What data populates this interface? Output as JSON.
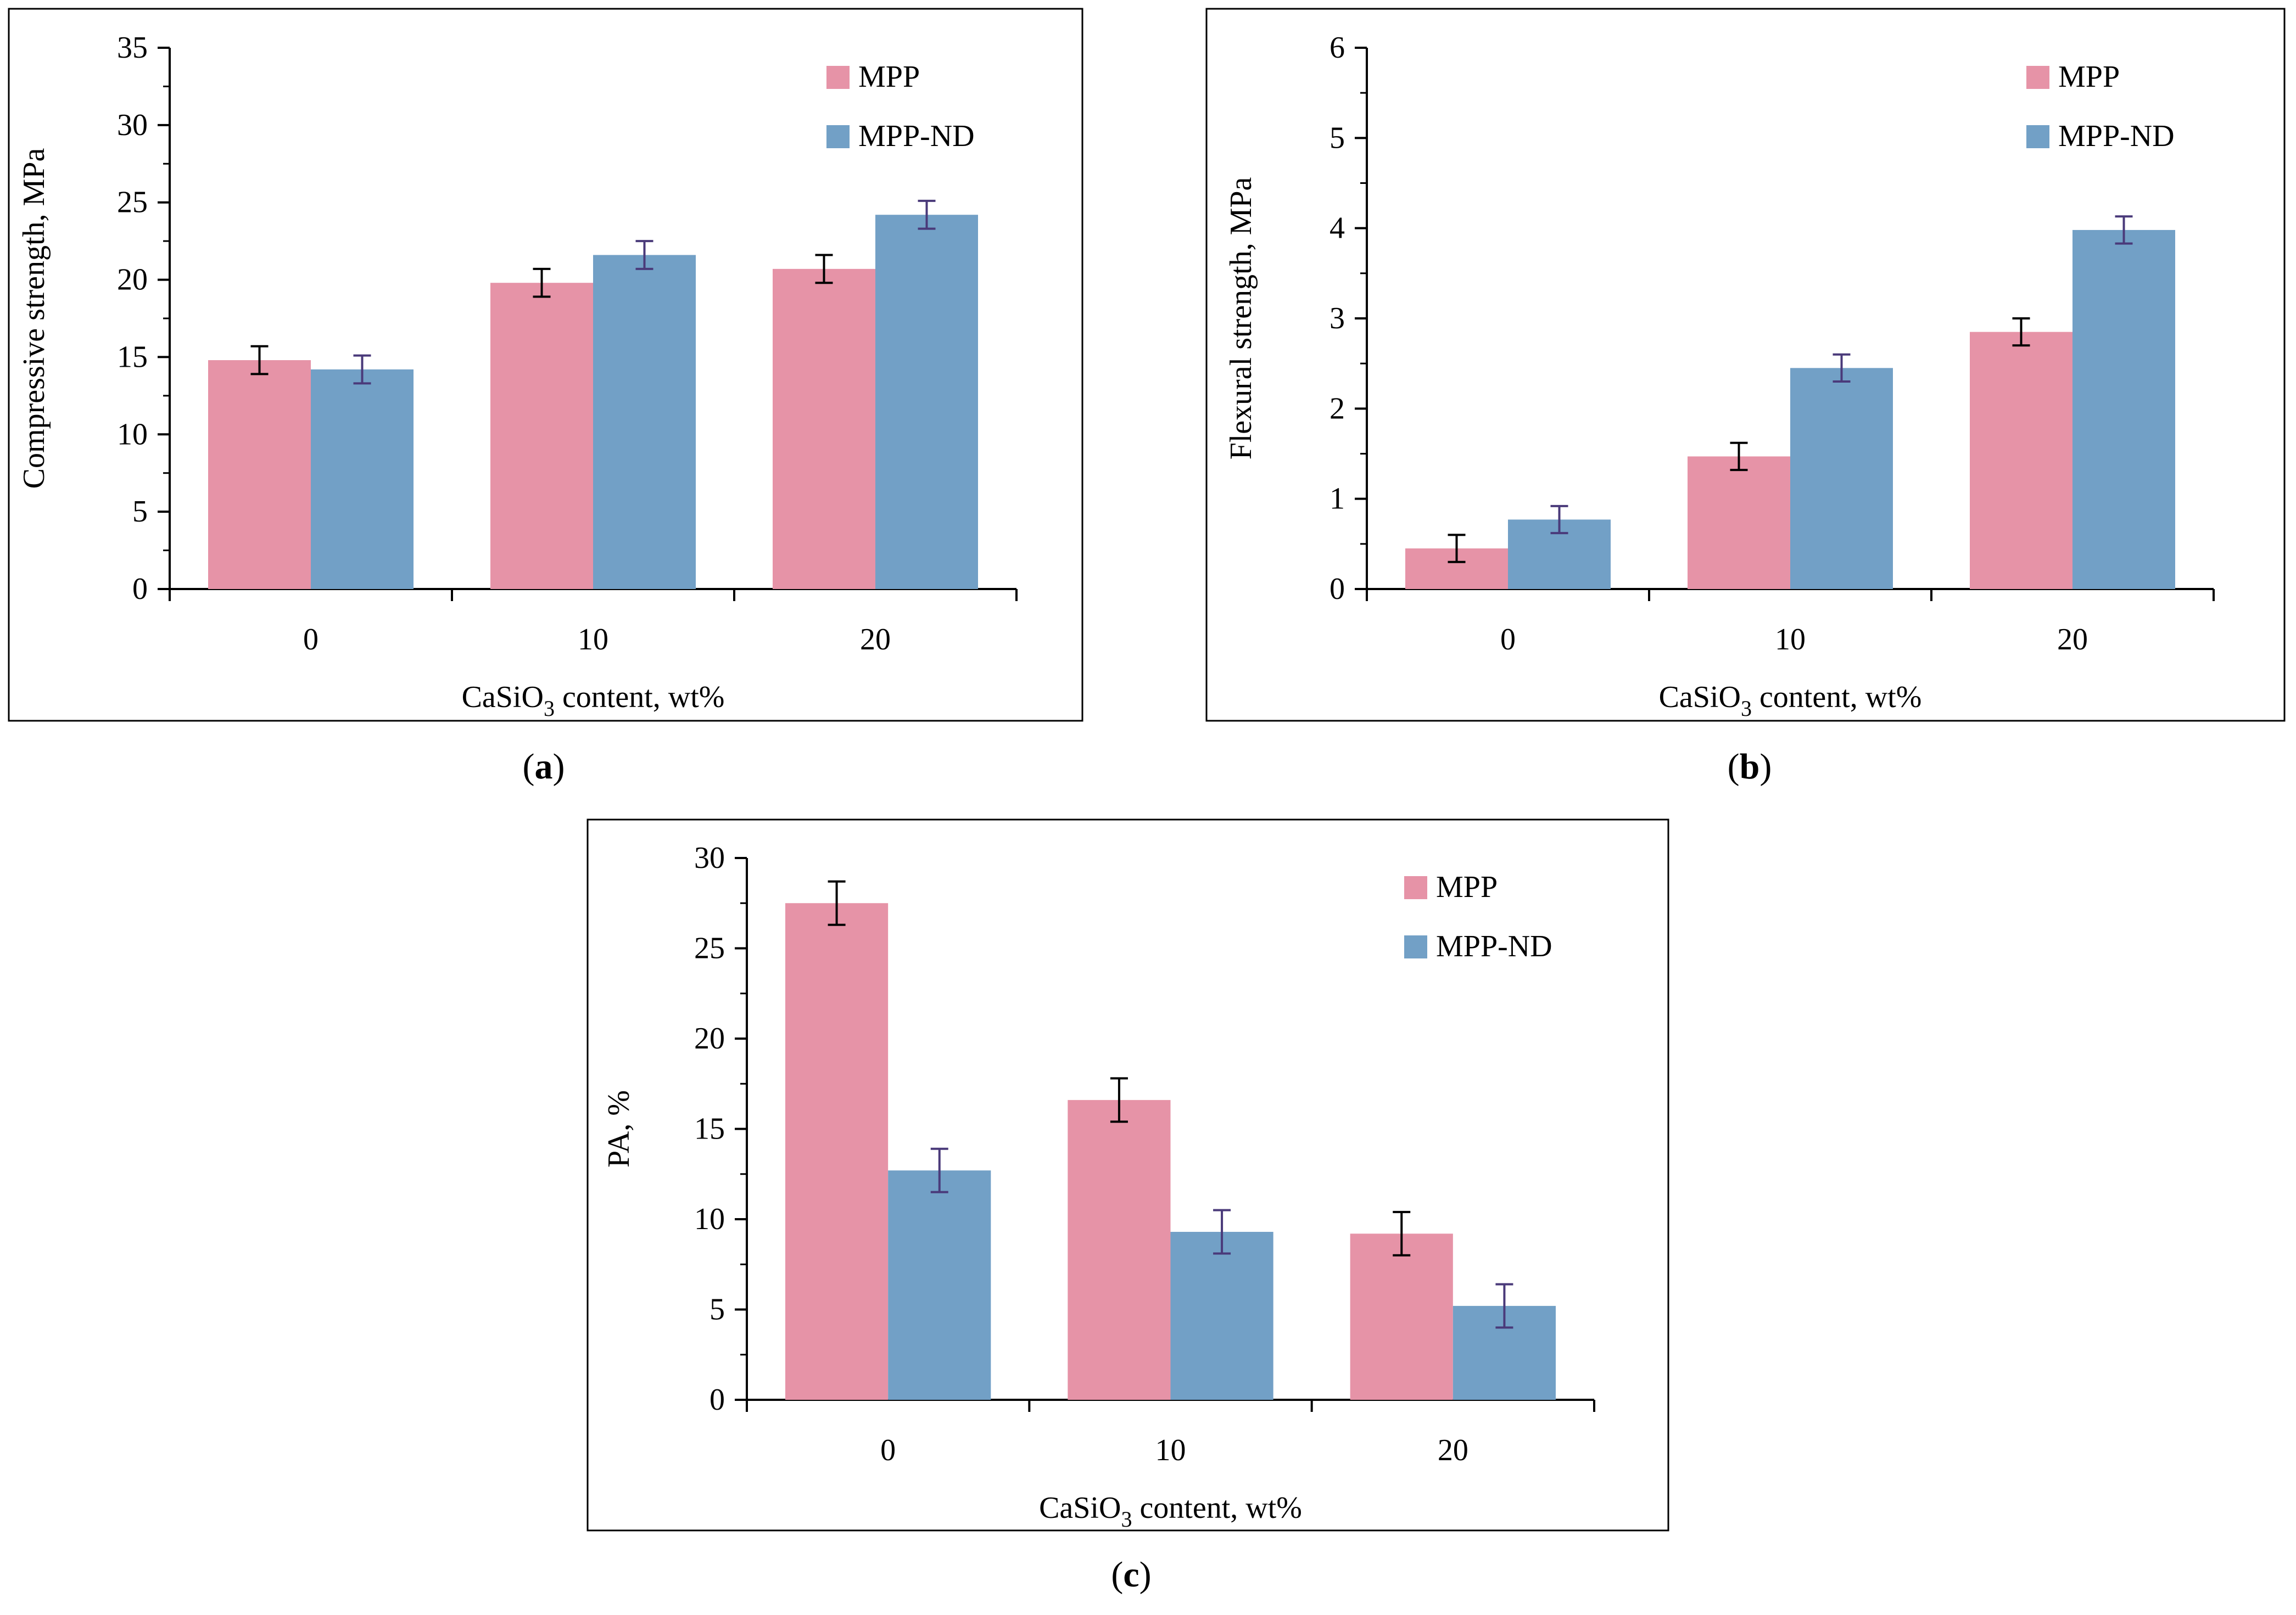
{
  "colors": {
    "mpp": "#E693A7",
    "mppnd": "#72A0C6",
    "err_mpp": "#000000",
    "err_mppnd": "#4A3A7A"
  },
  "chart_data": [
    {
      "id": "a",
      "type": "bar",
      "panel_label": "(a)",
      "panel_letter": "a",
      "categories": [
        "0",
        "10",
        "20"
      ],
      "xlabel_pre": "CaSiO",
      "xlabel_sub": "3",
      "xlabel_post": " content, wt%",
      "ylabel": "Compressive strength, MPa",
      "ylim": [
        0,
        35
      ],
      "yticks": [
        0,
        5,
        10,
        15,
        20,
        25,
        30,
        35
      ],
      "legend_position": "top-right",
      "series": [
        {
          "name": "MPP",
          "values": [
            14.8,
            19.8,
            20.7
          ],
          "errors": [
            0.9,
            0.9,
            0.9
          ]
        },
        {
          "name": "MPP-ND",
          "values": [
            14.2,
            21.6,
            24.2
          ],
          "errors": [
            0.9,
            0.9,
            0.9
          ]
        }
      ]
    },
    {
      "id": "b",
      "type": "bar",
      "panel_label": "(b)",
      "panel_letter": "b",
      "categories": [
        "0",
        "10",
        "20"
      ],
      "xlabel_pre": "CaSiO",
      "xlabel_sub": "3",
      "xlabel_post": " content, wt%",
      "ylabel": "Flexural strength, MPa",
      "ylim": [
        0,
        6
      ],
      "yticks": [
        0,
        1,
        2,
        3,
        4,
        5,
        6
      ],
      "legend_position": "top-right",
      "series": [
        {
          "name": "MPP",
          "values": [
            0.45,
            1.47,
            2.85
          ],
          "errors": [
            0.15,
            0.15,
            0.15
          ]
        },
        {
          "name": "MPP-ND",
          "values": [
            0.77,
            2.45,
            3.98
          ],
          "errors": [
            0.15,
            0.15,
            0.15
          ]
        }
      ]
    },
    {
      "id": "c",
      "type": "bar",
      "panel_label": "(c)",
      "panel_letter": "c",
      "categories": [
        "0",
        "10",
        "20"
      ],
      "xlabel_pre": "CaSiO",
      "xlabel_sub": "3",
      "xlabel_post": " content, wt%",
      "ylabel": "PA, %",
      "ylim": [
        0,
        30
      ],
      "yticks": [
        0,
        5,
        10,
        15,
        20,
        25,
        30
      ],
      "legend_position": "top-right",
      "series": [
        {
          "name": "MPP",
          "values": [
            27.5,
            16.6,
            9.2
          ],
          "errors": [
            1.2,
            1.2,
            1.2
          ]
        },
        {
          "name": "MPP-ND",
          "values": [
            12.7,
            9.3,
            5.2
          ],
          "errors": [
            1.2,
            1.2,
            1.2
          ]
        }
      ]
    }
  ]
}
